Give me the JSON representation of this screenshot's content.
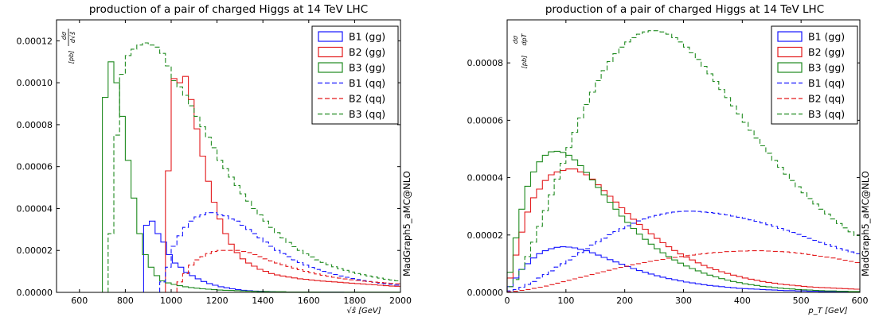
{
  "colors": {
    "blue": "#1414ff",
    "red": "#e31a1c",
    "green": "#1f8a1f"
  },
  "chart_data": [
    {
      "type": "line",
      "drawstyle": "step",
      "title": "production of a pair of charged Higgs at 14 TeV LHC",
      "xlabel": "√ŝ  [GeV]",
      "ylabel": "dσ/d√ŝ [pb]",
      "side_label": "MadGraph5_aMC@NLO",
      "xlim": [
        500,
        2000
      ],
      "ylim": [
        0,
        0.00013
      ],
      "xticks": [
        "600",
        "800",
        "1000",
        "1200",
        "1400",
        "1600",
        "1800",
        "2000"
      ],
      "yticks": [
        "0.00000",
        "0.00002",
        "0.00004",
        "0.00006",
        "0.00008",
        "0.00010",
        "0.00012"
      ],
      "legend": "top-right",
      "series": [
        {
          "name": "B1 (gg)",
          "color": "blue",
          "dash": false,
          "x0": 880,
          "step": 25,
          "values": [
            3.2e-05,
            3.4e-05,
            2.8e-05,
            2.4e-05,
            1.8e-05,
            1.4e-05,
            1.2e-05,
            9.5e-06,
            8e-06,
            6.5e-06,
            5.2e-06,
            4.2e-06,
            3.4e-06,
            2.7e-06,
            2.2e-06,
            1.7e-06,
            1.3e-06,
            1e-06,
            8e-07,
            6e-07,
            5e-07,
            4e-07,
            3e-07,
            2e-07,
            2e-07,
            1e-07,
            1e-07,
            1e-07,
            1e-07,
            1e-07,
            1e-07,
            1e-07,
            1e-07,
            1e-07,
            1e-07
          ]
        },
        {
          "name": "B2 (gg)",
          "color": "red",
          "dash": false,
          "x0": 975,
          "step": 25,
          "values": [
            5.8e-05,
            0.000102,
            0.0001,
            0.000103,
            9.2e-05,
            7.8e-05,
            6.5e-05,
            5.3e-05,
            4.3e-05,
            3.5e-05,
            2.8e-05,
            2.3e-05,
            1.9e-05,
            1.6e-05,
            1.4e-05,
            1.25e-05,
            1.1e-05,
            1e-05,
            9e-06,
            8.3e-06,
            7.8e-06,
            7.3e-06,
            6.9e-06,
            6.5e-06,
            6.2e-06,
            5.9e-06,
            5.6e-06,
            5.4e-06,
            5.2e-06,
            5e-06,
            4.8e-06,
            4.6e-06,
            4.4e-06,
            4.2e-06,
            4e-06,
            3.8e-06,
            3.6e-06,
            3.4e-06,
            3.2e-06,
            3e-06,
            2.9e-06
          ]
        },
        {
          "name": "B3 (gg)",
          "color": "green",
          "dash": false,
          "x0": 700,
          "step": 25,
          "values": [
            9.3e-05,
            0.00011,
            0.0001,
            8.4e-05,
            6.3e-05,
            4.5e-05,
            2.8e-05,
            1.8e-05,
            1.2e-05,
            8e-06,
            5.5e-06,
            4.5e-06,
            3.8e-06,
            3.2e-06,
            2.7e-06,
            2.3e-06,
            2e-06,
            1.7e-06,
            1.5e-06,
            1.3e-06,
            1.1e-06,
            1e-06,
            9e-07,
            8e-07,
            7e-07,
            6e-07,
            5e-07,
            4e-07,
            4e-07,
            3e-07,
            3e-07,
            3e-07,
            2e-07,
            2e-07,
            2e-07,
            2e-07,
            2e-07,
            2e-07,
            1e-07,
            1e-07,
            1e-07,
            1e-07,
            1e-07,
            1e-07,
            1e-07,
            1e-07,
            1e-07,
            1e-07,
            1e-07,
            1e-07,
            1e-07,
            1e-07
          ]
        },
        {
          "name": "B1 (qq)",
          "color": "blue",
          "dash": true,
          "x0": 950,
          "step": 25,
          "values": [
            5e-06,
            1.2e-05,
            2.2e-05,
            2.7e-05,
            3.1e-05,
            3.4e-05,
            3.6e-05,
            3.7e-05,
            3.8e-05,
            3.8e-05,
            3.7e-05,
            3.65e-05,
            3.5e-05,
            3.4e-05,
            3.2e-05,
            3e-05,
            2.8e-05,
            2.6e-05,
            2.4e-05,
            2.2e-05,
            2e-05,
            1.85e-05,
            1.7e-05,
            1.55e-05,
            1.42e-05,
            1.3e-05,
            1.19e-05,
            1.09e-05,
            1e-05,
            9.2e-06,
            8.5e-06,
            7.8e-06,
            7.2e-06,
            6.6e-06,
            6.1e-06,
            5.6e-06,
            5.2e-06,
            4.8e-06,
            4.4e-06,
            4.1e-06,
            3.8e-06,
            3.5e-06
          ]
        },
        {
          "name": "B2 (qq)",
          "color": "red",
          "dash": true,
          "x0": 1025,
          "step": 25,
          "values": [
            5e-06,
            9e-06,
            1.3e-05,
            1.55e-05,
            1.7e-05,
            1.85e-05,
            1.95e-05,
            2e-05,
            2e-05,
            2e-05,
            2e-05,
            1.95e-05,
            1.9e-05,
            1.8e-05,
            1.7e-05,
            1.6e-05,
            1.5e-05,
            1.4e-05,
            1.32e-05,
            1.24e-05,
            1.16e-05,
            1.08e-05,
            1e-05,
            9.4e-06,
            8.8e-06,
            8.2e-06,
            7.7e-06,
            7.2e-06,
            6.8e-06,
            6.4e-06,
            6e-06,
            5.7e-06,
            5.4e-06,
            5.1e-06,
            4.9e-06,
            4.7e-06,
            4.5e-06,
            4.3e-06,
            4.1e-06
          ]
        },
        {
          "name": "B3 (qq)",
          "color": "green",
          "dash": true,
          "x0": 725,
          "step": 25,
          "values": [
            2.8e-05,
            7.5e-05,
            0.000104,
            0.000113,
            0.000116,
            0.000118,
            0.000119,
            0.000118,
            0.000117,
            0.000114,
            0.000108,
            0.000101,
            9.8e-05,
            9.4e-05,
            8.9e-05,
            8.4e-05,
            7.9e-05,
            7.4e-05,
            6.9e-05,
            6.3e-05,
            5.9e-05,
            5.5e-05,
            5.1e-05,
            4.7e-05,
            4.35e-05,
            4e-05,
            3.7e-05,
            3.4e-05,
            3.1e-05,
            2.85e-05,
            2.6e-05,
            2.38e-05,
            2.18e-05,
            2e-05,
            1.84e-05,
            1.69e-05,
            1.55e-05,
            1.43e-05,
            1.32e-05,
            1.22e-05,
            1.13e-05,
            1.05e-05,
            9.7e-06,
            9e-06,
            8.4e-06,
            7.8e-06,
            7.3e-06,
            6.8e-06,
            6.3e-06,
            5.9e-06,
            5.5e-06
          ]
        }
      ]
    },
    {
      "type": "line",
      "drawstyle": "step",
      "title": "production of a pair of charged Higgs at 14 TeV LHC",
      "xlabel": "p_T  [GeV]",
      "ylabel": "dσ/dp_T",
      "side_label": "MadGraph5_aMC@NLO",
      "xlim": [
        0,
        600
      ],
      "ylim": [
        0,
        9.5e-05
      ],
      "xticks": [
        "0",
        "100",
        "200",
        "300",
        "400",
        "500",
        "600"
      ],
      "yticks": [
        "0.00000",
        "0.00002",
        "0.00004",
        "0.00006",
        "0.00008"
      ],
      "legend": "top-right",
      "series": [
        {
          "name": "B1 (gg)",
          "color": "blue",
          "dash": false,
          "x0": 0,
          "step": 10,
          "values": [
            2e-06,
            5e-06,
            8e-06,
            1e-05,
            1.2e-05,
            1.35e-05,
            1.45e-05,
            1.52e-05,
            1.57e-05,
            1.59e-05,
            1.58e-05,
            1.55e-05,
            1.5e-05,
            1.45e-05,
            1.38e-05,
            1.3e-05,
            1.22e-05,
            1.14e-05,
            1.06e-05,
            9.8e-06,
            9e-06,
            8.3e-06,
            7.6e-06,
            7e-06,
            6.4e-06,
            5.8e-06,
            5.3e-06,
            4.8e-06,
            4.4e-06,
            4e-06,
            3.6e-06,
            3.3e-06,
            3e-06,
            2.7e-06,
            2.4e-06,
            2.2e-06,
            2e-06,
            1.8e-06,
            1.6e-06,
            1.4e-06,
            1.3e-06,
            1.2e-06,
            1.1e-06,
            1e-06,
            9e-07,
            8e-07,
            7e-07,
            6e-07,
            6e-07,
            5e-07,
            5e-07,
            4e-07,
            4e-07,
            3e-07,
            3e-07,
            3e-07,
            2e-07,
            2e-07,
            2e-07,
            2e-07
          ]
        },
        {
          "name": "B2 (gg)",
          "color": "red",
          "dash": false,
          "x0": 0,
          "step": 10,
          "values": [
            5e-06,
            1.3e-05,
            2.1e-05,
            2.8e-05,
            3.3e-05,
            3.6e-05,
            3.9e-05,
            4.1e-05,
            4.2e-05,
            4.25e-05,
            4.3e-05,
            4.3e-05,
            4.2e-05,
            4.1e-05,
            3.95e-05,
            3.75e-05,
            3.55e-05,
            3.35e-05,
            3.15e-05,
            2.95e-05,
            2.75e-05,
            2.55e-05,
            2.37e-05,
            2.2e-05,
            2.04e-05,
            1.88e-05,
            1.73e-05,
            1.59e-05,
            1.46e-05,
            1.34e-05,
            1.23e-05,
            1.13e-05,
            1.03e-05,
            9.4e-06,
            8.6e-06,
            7.9e-06,
            7.2e-06,
            6.6e-06,
            6e-06,
            5.5e-06,
            5e-06,
            4.6e-06,
            4.2e-06,
            3.8e-06,
            3.5e-06,
            3.2e-06,
            2.9e-06,
            2.7e-06,
            2.5e-06,
            2.3e-06,
            2.1e-06,
            1.9e-06,
            1.8e-06,
            1.7e-06,
            1.6e-06,
            1.5e-06,
            1.4e-06,
            1.3e-06,
            1.2e-06,
            1.1e-06
          ]
        },
        {
          "name": "B3 (gg)",
          "color": "green",
          "dash": false,
          "x0": 0,
          "step": 10,
          "values": [
            7e-06,
            1.9e-05,
            2.9e-05,
            3.7e-05,
            4.2e-05,
            4.55e-05,
            4.78e-05,
            4.9e-05,
            4.92e-05,
            4.88e-05,
            4.78e-05,
            4.62e-05,
            4.42e-05,
            4.18e-05,
            3.92e-05,
            3.66e-05,
            3.4e-05,
            3.14e-05,
            2.9e-05,
            2.66e-05,
            2.44e-05,
            2.23e-05,
            2.03e-05,
            1.85e-05,
            1.68e-05,
            1.52e-05,
            1.38e-05,
            1.25e-05,
            1.13e-05,
            1.02e-05,
            9.2e-06,
            8.3e-06,
            7.5e-06,
            6.7e-06,
            6e-06,
            5.4e-06,
            4.8e-06,
            4.3e-06,
            3.8e-06,
            3.4e-06,
            3e-06,
            2.7e-06,
            2.4e-06,
            2.1e-06,
            1.9e-06,
            1.7e-06,
            1.5e-06,
            1.3e-06,
            1.2e-06,
            1e-06,
            9e-07,
            8e-07,
            7e-07,
            6e-07,
            5e-07,
            5e-07,
            4e-07,
            4e-07,
            3e-07,
            3e-07
          ]
        },
        {
          "name": "B1 (qq)",
          "color": "blue",
          "dash": true,
          "x0": 0,
          "step": 10,
          "values": [
            5e-07,
            1e-06,
            1.8e-06,
            2.8e-06,
            3.8e-06,
            5e-06,
            6.2e-06,
            7.5e-06,
            8.8e-06,
            1e-05,
            1.13e-05,
            1.26e-05,
            1.39e-05,
            1.52e-05,
            1.65e-05,
            1.77e-05,
            1.89e-05,
            2.01e-05,
            2.12e-05,
            2.22e-05,
            2.32e-05,
            2.41e-05,
            2.49e-05,
            2.56e-05,
            2.63e-05,
            2.68e-05,
            2.73e-05,
            2.77e-05,
            2.8e-05,
            2.82e-05,
            2.83e-05,
            2.83e-05,
            2.82e-05,
            2.8e-05,
            2.78e-05,
            2.76e-05,
            2.73e-05,
            2.7e-05,
            2.66e-05,
            2.62e-05,
            2.58e-05,
            2.53e-05,
            2.48e-05,
            2.42e-05,
            2.36e-05,
            2.3e-05,
            2.23e-05,
            2.16e-05,
            2.09e-05,
            2.02e-05,
            1.95e-05,
            1.88e-05,
            1.81e-05,
            1.74e-05,
            1.67e-05,
            1.6e-05,
            1.53e-05,
            1.47e-05,
            1.41e-05,
            1.35e-05
          ]
        },
        {
          "name": "B2 (qq)",
          "color": "red",
          "dash": true,
          "x0": 0,
          "step": 10,
          "values": [
            2e-07,
            4e-07,
            7e-07,
            1e-06,
            1.4e-06,
            1.8e-06,
            2.2e-06,
            2.7e-06,
            3.2e-06,
            3.7e-06,
            4.2e-06,
            4.7e-06,
            5.2e-06,
            5.7e-06,
            6.2e-06,
            6.7e-06,
            7.2e-06,
            7.7e-06,
            8.2e-06,
            8.7e-06,
            9.1e-06,
            9.6e-06,
            1e-05,
            1.04e-05,
            1.08e-05,
            1.12e-05,
            1.15e-05,
            1.19e-05,
            1.22e-05,
            1.25e-05,
            1.28e-05,
            1.3e-05,
            1.33e-05,
            1.35e-05,
            1.37e-05,
            1.39e-05,
            1.4e-05,
            1.42e-05,
            1.43e-05,
            1.44e-05,
            1.44e-05,
            1.45e-05,
            1.45e-05,
            1.45e-05,
            1.44e-05,
            1.43e-05,
            1.42e-05,
            1.41e-05,
            1.39e-05,
            1.37e-05,
            1.35e-05,
            1.32e-05,
            1.29e-05,
            1.26e-05,
            1.23e-05,
            1.2e-05,
            1.16e-05,
            1.12e-05,
            1.08e-05,
            1.04e-05
          ]
        },
        {
          "name": "B3 (qq)",
          "color": "green",
          "dash": true,
          "x0": 0,
          "step": 10,
          "values": [
            2e-06,
            4.5e-06,
            8e-06,
            1.25e-05,
            1.75e-05,
            2.3e-05,
            2.85e-05,
            3.4e-05,
            3.95e-05,
            4.5e-05,
            5.05e-05,
            5.58e-05,
            6.08e-05,
            6.55e-05,
            6.98e-05,
            7.38e-05,
            7.73e-05,
            8.05e-05,
            8.32e-05,
            8.55e-05,
            8.73e-05,
            8.88e-05,
            9e-05,
            9.08e-05,
            9.12e-05,
            9.12e-05,
            9.08e-05,
            9e-05,
            8.88e-05,
            8.73e-05,
            8.55e-05,
            8.35e-05,
            8.12e-05,
            7.88e-05,
            7.62e-05,
            7.35e-05,
            7.07e-05,
            6.79e-05,
            6.5e-05,
            6.22e-05,
            5.93e-05,
            5.65e-05,
            5.38e-05,
            5.11e-05,
            4.85e-05,
            4.6e-05,
            4.36e-05,
            4.12e-05,
            3.9e-05,
            3.68e-05,
            3.47e-05,
            3.27e-05,
            3.08e-05,
            2.9e-05,
            2.73e-05,
            2.56e-05,
            2.4e-05,
            2.25e-05,
            2.11e-05,
            1.98e-05
          ]
        }
      ]
    }
  ]
}
